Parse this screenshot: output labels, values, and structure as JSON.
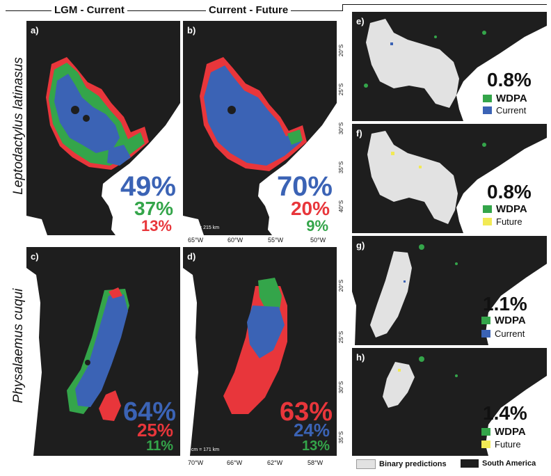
{
  "columns": {
    "lgm_current": "LGM - Current",
    "current_future": "Current - Future"
  },
  "species": {
    "top": "Leptodactylus latinasus",
    "bottom": "Physalaemus cuqui"
  },
  "colors": {
    "blue": "#3b63b5",
    "green": "#34a54a",
    "red": "#e8363b",
    "land": "#1e1e1e",
    "prediction": "#e2e2e2",
    "yellow": "#f2ea55"
  },
  "panels": {
    "a": {
      "label": "a)",
      "pcts": [
        "49%",
        "37%",
        "13%"
      ]
    },
    "b": {
      "label": "b)",
      "pcts": [
        "70%",
        "20%",
        "9%"
      ],
      "scale": "1 cm = 215 km"
    },
    "c": {
      "label": "c)",
      "pcts": [
        "64%",
        "25%",
        "11%"
      ]
    },
    "d": {
      "label": "d)",
      "pcts": [
        "63%",
        "24%",
        "13%"
      ],
      "scale": "1 cm = 171 km"
    },
    "e": {
      "label": "e)",
      "pct": "0.8%",
      "legend": [
        "WDPA",
        "Current"
      ]
    },
    "f": {
      "label": "f)",
      "pct": "0.8%",
      "legend": [
        "WDPA",
        "Future"
      ]
    },
    "g": {
      "label": "g)",
      "pct": "1.1%",
      "legend": [
        "WDPA",
        "Current"
      ]
    },
    "h": {
      "label": "h)",
      "pct": "1.4%",
      "legend": [
        "WDPA",
        "Future"
      ]
    }
  },
  "axes": {
    "top_lat": [
      "20°S",
      "25°S",
      "30°S",
      "35°S",
      "40°S"
    ],
    "top_lon": [
      "65°W",
      "60°W",
      "55°W",
      "50°W"
    ],
    "bottom_lat": [
      "20°S",
      "25°S",
      "30°S",
      "35°S"
    ],
    "bottom_lon": [
      "70°W",
      "66°W",
      "62°W",
      "58°W"
    ]
  },
  "bottom_legend": {
    "binary": "Binary predictions",
    "south_america": "South America"
  }
}
